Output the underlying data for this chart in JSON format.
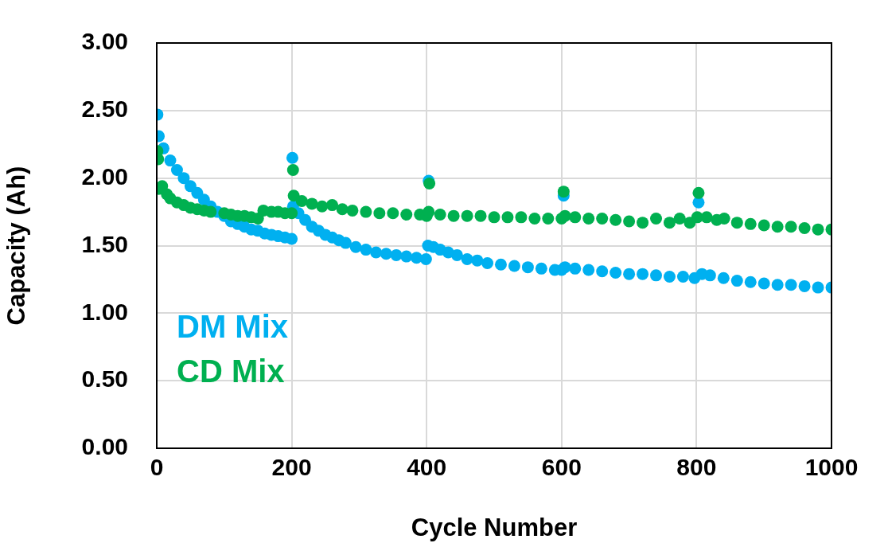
{
  "chart_data": {
    "type": "scatter",
    "xlabel": "Cycle Number",
    "ylabel": "Capacity (Ah)",
    "xlim": [
      0,
      1000
    ],
    "xticks": [
      0,
      200,
      400,
      600,
      800,
      1000
    ],
    "ylim": [
      0,
      3
    ],
    "yticks": [
      {
        "value": 0,
        "label": "0.00"
      },
      {
        "value": 0.5,
        "label": "0.50"
      },
      {
        "value": 1,
        "label": "1.00"
      },
      {
        "value": 1.5,
        "label": "1.50"
      },
      {
        "value": 2,
        "label": "2.00"
      },
      {
        "value": 2.5,
        "label": "2.50"
      },
      {
        "value": 3,
        "label": "3.00"
      }
    ],
    "grid": true,
    "legend": "bottom left",
    "marker": "circle",
    "series": [
      {
        "name": "DM Mix",
        "color": "#00b0f0",
        "x": [
          1,
          3,
          10,
          20,
          30,
          40,
          50,
          60,
          70,
          80,
          90,
          100,
          110,
          120,
          130,
          140,
          150,
          160,
          170,
          180,
          190,
          200,
          201,
          202,
          210,
          220,
          230,
          240,
          250,
          260,
          270,
          280,
          295,
          310,
          325,
          340,
          355,
          370,
          385,
          399,
          402,
          403,
          410,
          420,
          432,
          445,
          460,
          475,
          490,
          510,
          530,
          550,
          570,
          590,
          600,
          603,
          605,
          620,
          640,
          660,
          680,
          700,
          720,
          740,
          760,
          780,
          797,
          803,
          808,
          820,
          840,
          860,
          880,
          900,
          920,
          940,
          960,
          980,
          1000
        ],
        "values": [
          2.47,
          2.31,
          2.22,
          2.13,
          2.06,
          2.0,
          1.94,
          1.89,
          1.84,
          1.79,
          1.75,
          1.72,
          1.68,
          1.66,
          1.64,
          1.62,
          1.61,
          1.59,
          1.58,
          1.57,
          1.56,
          1.55,
          2.15,
          1.79,
          1.74,
          1.69,
          1.64,
          1.61,
          1.58,
          1.56,
          1.54,
          1.52,
          1.49,
          1.47,
          1.45,
          1.44,
          1.43,
          1.42,
          1.41,
          1.4,
          1.5,
          1.98,
          1.49,
          1.47,
          1.45,
          1.43,
          1.4,
          1.39,
          1.37,
          1.36,
          1.35,
          1.34,
          1.33,
          1.32,
          1.32,
          1.87,
          1.34,
          1.33,
          1.32,
          1.31,
          1.3,
          1.29,
          1.29,
          1.28,
          1.27,
          1.27,
          1.26,
          1.82,
          1.29,
          1.28,
          1.26,
          1.24,
          1.23,
          1.22,
          1.21,
          1.21,
          1.2,
          1.19,
          1.19
        ]
      },
      {
        "name": "CD Mix",
        "color": "#00b050",
        "x": [
          1,
          2,
          3,
          8,
          15,
          20,
          30,
          40,
          50,
          60,
          70,
          80,
          90,
          100,
          110,
          120,
          130,
          140,
          150,
          158,
          170,
          180,
          190,
          200,
          202,
          203,
          215,
          230,
          245,
          260,
          275,
          290,
          310,
          330,
          350,
          370,
          390,
          400,
          403,
          404,
          420,
          440,
          460,
          480,
          500,
          520,
          540,
          560,
          580,
          600,
          603,
          605,
          620,
          640,
          660,
          680,
          700,
          720,
          740,
          760,
          775,
          790,
          801,
          803,
          815,
          830,
          841,
          860,
          880,
          900,
          920,
          940,
          960,
          980,
          1000
        ],
        "values": [
          2.2,
          2.14,
          1.92,
          1.94,
          1.88,
          1.85,
          1.82,
          1.8,
          1.78,
          1.77,
          1.76,
          1.75,
          null,
          1.74,
          1.73,
          1.72,
          1.72,
          1.71,
          1.7,
          1.76,
          1.75,
          1.75,
          1.74,
          1.74,
          2.06,
          1.87,
          1.83,
          1.81,
          1.79,
          1.8,
          1.77,
          1.76,
          1.75,
          1.74,
          1.74,
          1.73,
          1.73,
          1.72,
          1.75,
          1.96,
          1.73,
          1.72,
          1.72,
          1.72,
          1.71,
          1.71,
          1.71,
          1.7,
          1.7,
          1.7,
          1.9,
          1.72,
          1.71,
          1.7,
          1.7,
          1.69,
          1.68,
          1.67,
          1.7,
          1.67,
          1.7,
          1.67,
          1.71,
          1.89,
          1.71,
          1.69,
          1.7,
          1.67,
          1.66,
          1.65,
          1.64,
          1.64,
          1.63,
          1.62,
          1.62
        ]
      }
    ]
  }
}
